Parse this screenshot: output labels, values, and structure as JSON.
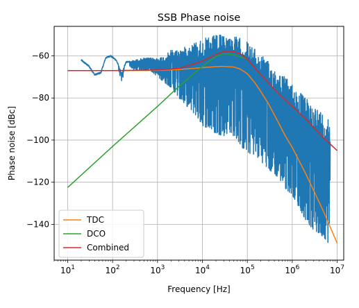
{
  "chart_data": {
    "type": "line",
    "title": "SSB Phase noise",
    "xlabel": "Frequency [Hz]",
    "ylabel": "Phase noise [dBc]",
    "x_scale": "log",
    "xlim": [
      5,
      14000000
    ],
    "ylim": [
      -157,
      -46
    ],
    "grid": true,
    "legend_position": "lower-left",
    "x_ticks": [
      {
        "value": 10,
        "label_base": "10",
        "label_exp": "1"
      },
      {
        "value": 100,
        "label_base": "10",
        "label_exp": "2"
      },
      {
        "value": 1000,
        "label_base": "10",
        "label_exp": "3"
      },
      {
        "value": 10000,
        "label_base": "10",
        "label_exp": "4"
      },
      {
        "value": 100000,
        "label_base": "10",
        "label_exp": "5"
      },
      {
        "value": 1000000,
        "label_base": "10",
        "label_exp": "6"
      },
      {
        "value": 10000000,
        "label_base": "10",
        "label_exp": "7"
      }
    ],
    "y_ticks": [
      {
        "value": -60,
        "label": "−60"
      },
      {
        "value": -80,
        "label": "−80"
      },
      {
        "value": -100,
        "label": "−100"
      },
      {
        "value": -120,
        "label": "−120"
      },
      {
        "value": -140,
        "label": "−140"
      }
    ],
    "series": [
      {
        "name": "",
        "color": "#1f77b4",
        "style": "noisy-measurement",
        "x": [
          20,
          30,
          40,
          55,
          70,
          90,
          120,
          160,
          200,
          300,
          500,
          700,
          1000,
          1500,
          2000,
          3000,
          5000,
          7000,
          10000,
          15000,
          20000,
          30000,
          40000,
          60000,
          80000,
          100000,
          150000,
          200000,
          300000,
          500000,
          700000,
          1000000,
          1500000,
          2000000,
          3000000,
          5000000,
          7000000
        ],
        "y_upper": [
          -62,
          -65,
          -69,
          -68,
          -61,
          -60,
          -62,
          -68,
          -63,
          -62,
          -61,
          -61,
          -61,
          -60,
          -57,
          -57,
          -55,
          -53,
          -52,
          -51,
          -50,
          -50,
          -50,
          -51,
          -52,
          -53,
          -57,
          -59,
          -63,
          -67,
          -70,
          -73,
          -77,
          -80,
          -83,
          -87,
          -89
        ],
        "y_lower": [
          -62,
          -65,
          -69,
          -68,
          -61,
          -60,
          -62,
          -73,
          -63,
          -67,
          -67,
          -67,
          -70,
          -73,
          -75,
          -80,
          -85,
          -88,
          -93,
          -95,
          -97,
          -98,
          -96,
          -100,
          -104,
          -106,
          -107,
          -110,
          -114,
          -118,
          -123,
          -126,
          -133,
          -138,
          -143,
          -146,
          -150
        ]
      },
      {
        "name": "TDC",
        "color": "#ff7f0e",
        "x": [
          10,
          30,
          100,
          300,
          1000,
          3000,
          10000,
          20000,
          30000,
          50000,
          70000,
          100000,
          150000,
          200000,
          300000,
          500000,
          700000,
          1000000,
          2000000,
          5000000,
          10000000
        ],
        "y": [
          -67,
          -67,
          -67,
          -67,
          -66.9,
          -66.5,
          -65.6,
          -65.1,
          -65,
          -65.3,
          -66.3,
          -68.5,
          -73,
          -77,
          -83,
          -92,
          -98,
          -103.5,
          -116,
          -134,
          -149
        ]
      },
      {
        "name": "DCO",
        "color": "#2ca02c",
        "x": [
          10,
          100,
          1000,
          3000,
          10000,
          20000,
          30000,
          50000,
          100000
        ],
        "y": [
          -122.5,
          -103,
          -84,
          -74.5,
          -65,
          -60.3,
          -59,
          -59.5,
          -61.5
        ]
      },
      {
        "name": "Combined",
        "color": "#d62728",
        "x": [
          10,
          100,
          1000,
          3000,
          10000,
          20000,
          30000,
          40000,
          50000,
          70000,
          100000,
          150000,
          200000,
          300000,
          500000,
          1000000,
          2000000,
          5000000,
          10000000
        ],
        "y": [
          -67,
          -67,
          -66.7,
          -66,
          -62.5,
          -59.3,
          -58,
          -57.8,
          -58,
          -59,
          -61.5,
          -66,
          -69,
          -73,
          -78,
          -84,
          -90,
          -99,
          -105
        ]
      }
    ]
  }
}
